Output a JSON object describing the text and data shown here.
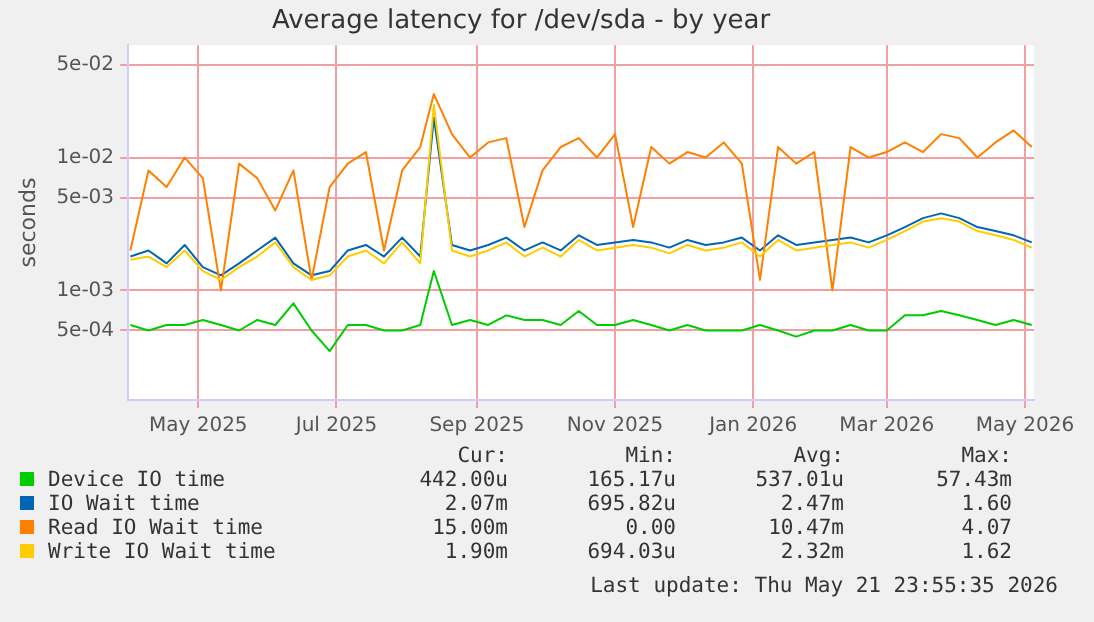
{
  "chart_data": {
    "type": "line",
    "title": "Average latency for /dev/sda - by year",
    "ylabel": "seconds",
    "log": true,
    "grid": true,
    "legend": "bottom",
    "ylim": [
      0.00015,
      0.07
    ],
    "yticks": [
      {
        "value": 0.0005,
        "label": "5e-04"
      },
      {
        "value": 0.001,
        "label": "1e-03"
      },
      {
        "value": 0.005,
        "label": "5e-03"
      },
      {
        "value": 0.01,
        "label": "1e-02"
      },
      {
        "value": 0.05,
        "label": "5e-02"
      }
    ],
    "xlim": [
      "2025-03-31",
      "2026-05-05"
    ],
    "xticks": [
      {
        "value": "2025-05-01",
        "label": "May 2025"
      },
      {
        "value": "2025-07-01",
        "label": "Jul 2025"
      },
      {
        "value": "2025-09-01",
        "label": "Sep 2025"
      },
      {
        "value": "2025-11-01",
        "label": "Nov 2025"
      },
      {
        "value": "2026-01-01",
        "label": "Jan 2026"
      },
      {
        "value": "2026-03-01",
        "label": "Mar 2026"
      },
      {
        "value": "2026-05-01",
        "label": "May 2026"
      }
    ],
    "x": [
      "2025-04-01",
      "2025-04-09",
      "2025-04-17",
      "2025-04-25",
      "2025-05-03",
      "2025-05-11",
      "2025-05-19",
      "2025-05-27",
      "2025-06-04",
      "2025-06-12",
      "2025-06-20",
      "2025-06-28",
      "2025-07-06",
      "2025-07-14",
      "2025-07-22",
      "2025-07-30",
      "2025-08-07",
      "2025-08-13",
      "2025-08-21",
      "2025-08-29",
      "2025-09-06",
      "2025-09-14",
      "2025-09-22",
      "2025-09-30",
      "2025-10-08",
      "2025-10-16",
      "2025-10-24",
      "2025-11-01",
      "2025-11-09",
      "2025-11-17",
      "2025-11-25",
      "2025-12-03",
      "2025-12-11",
      "2025-12-19",
      "2025-12-27",
      "2026-01-04",
      "2026-01-12",
      "2026-01-20",
      "2026-01-28",
      "2026-02-05",
      "2026-02-13",
      "2026-02-21",
      "2026-03-01",
      "2026-03-09",
      "2026-03-17",
      "2026-03-25",
      "2026-04-02",
      "2026-04-10",
      "2026-04-18",
      "2026-04-26",
      "2026-05-04"
    ],
    "series": [
      {
        "name": "Device IO time",
        "color": "#00cc00",
        "values": [
          0.00055,
          0.0005,
          0.00055,
          0.00055,
          0.0006,
          0.00055,
          0.0005,
          0.0006,
          0.00055,
          0.0008,
          0.0005,
          0.00035,
          0.00055,
          0.00055,
          0.0005,
          0.0005,
          0.00055,
          0.0014,
          0.00055,
          0.0006,
          0.00055,
          0.00065,
          0.0006,
          0.0006,
          0.00055,
          0.0007,
          0.00055,
          0.00055,
          0.0006,
          0.00055,
          0.0005,
          0.00055,
          0.0005,
          0.0005,
          0.0005,
          0.00055,
          0.0005,
          0.00045,
          0.0005,
          0.0005,
          0.00055,
          0.0005,
          0.0005,
          0.00065,
          0.00065,
          0.0007,
          0.00065,
          0.0006,
          0.00055,
          0.0006,
          0.00055
        ]
      },
      {
        "name": "IO Wait time",
        "color": "#0066b3",
        "values": [
          0.0018,
          0.002,
          0.0016,
          0.0022,
          0.0015,
          0.0013,
          0.0016,
          0.002,
          0.0025,
          0.0016,
          0.0013,
          0.0014,
          0.002,
          0.0022,
          0.0018,
          0.0025,
          0.0018,
          0.02,
          0.0022,
          0.002,
          0.0022,
          0.0025,
          0.002,
          0.0023,
          0.002,
          0.0026,
          0.0022,
          0.0023,
          0.0024,
          0.0023,
          0.0021,
          0.0024,
          0.0022,
          0.0023,
          0.0025,
          0.002,
          0.0026,
          0.0022,
          0.0023,
          0.0024,
          0.0025,
          0.0023,
          0.0026,
          0.003,
          0.0035,
          0.0038,
          0.0035,
          0.003,
          0.0028,
          0.0026,
          0.0023
        ]
      },
      {
        "name": "Read IO Wait time",
        "color": "#ff8000",
        "values": [
          0.002,
          0.008,
          0.006,
          0.01,
          0.007,
          0.001,
          0.009,
          0.007,
          0.004,
          0.008,
          0.0012,
          0.006,
          0.009,
          0.011,
          0.002,
          0.008,
          0.012,
          0.03,
          0.015,
          0.01,
          0.013,
          0.014,
          0.003,
          0.008,
          0.012,
          0.014,
          0.01,
          0.015,
          0.003,
          0.012,
          0.009,
          0.011,
          0.01,
          0.013,
          0.009,
          0.0012,
          0.012,
          0.009,
          0.011,
          0.001,
          0.012,
          0.01,
          0.011,
          0.013,
          0.011,
          0.015,
          0.014,
          0.01,
          0.013,
          0.016,
          0.012
        ]
      },
      {
        "name": "Write IO Wait time",
        "color": "#ffcc00",
        "values": [
          0.0017,
          0.0018,
          0.0015,
          0.002,
          0.0014,
          0.0012,
          0.0015,
          0.0018,
          0.0023,
          0.0015,
          0.0012,
          0.0013,
          0.0018,
          0.002,
          0.0016,
          0.0023,
          0.0016,
          0.025,
          0.002,
          0.0018,
          0.002,
          0.0023,
          0.0018,
          0.0021,
          0.0018,
          0.0024,
          0.002,
          0.0021,
          0.0022,
          0.0021,
          0.0019,
          0.0022,
          0.002,
          0.0021,
          0.0023,
          0.0018,
          0.0024,
          0.002,
          0.0021,
          0.0022,
          0.0023,
          0.0021,
          0.0024,
          0.0028,
          0.0033,
          0.0035,
          0.0033,
          0.0028,
          0.0026,
          0.0024,
          0.0021
        ]
      }
    ],
    "annotations": [
      "Cur:",
      "Min:",
      "Avg:",
      "Max:",
      "442.00u",
      "165.17u",
      "537.01u",
      "57.43m",
      "2.07m",
      "695.82u",
      "2.47m",
      "1.60",
      "15.00m",
      "0.00",
      "10.47m",
      "4.07",
      "1.90m",
      "694.03u",
      "2.32m",
      "1.62",
      "Last update: Thu May 21 23:55:35 2026"
    ]
  }
}
